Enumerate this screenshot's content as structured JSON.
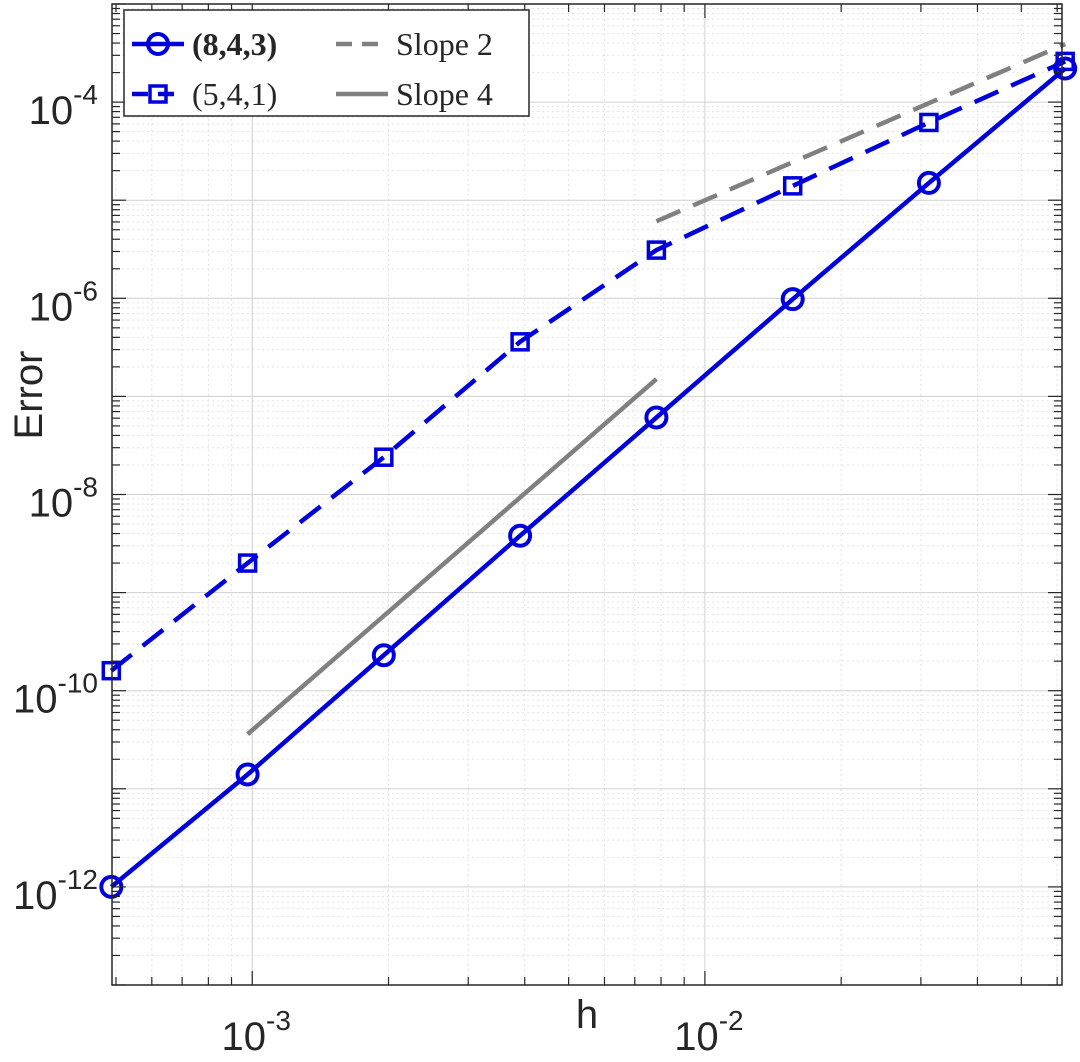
{
  "chart_data": {
    "type": "line",
    "title": "",
    "xlabel": "h",
    "ylabel": "Error",
    "xscale": "log",
    "yscale": "log",
    "xlim": [
      0.00049,
      0.0615
    ],
    "ylim": [
      1e-13,
      0.001
    ],
    "xticks": [
      {
        "base": "10",
        "exp": "-3",
        "value": 0.001
      },
      {
        "base": "10",
        "exp": "-2",
        "value": 0.01
      }
    ],
    "yticks": [
      {
        "base": "10",
        "exp": "-4",
        "value": 0.0001
      },
      {
        "base": "10",
        "exp": "-6",
        "value": 1e-06
      },
      {
        "base": "10",
        "exp": "-8",
        "value": 1e-08
      },
      {
        "base": "10",
        "exp": "-10",
        "value": 1e-10
      },
      {
        "base": "10",
        "exp": "-12",
        "value": 1e-12
      }
    ],
    "grid": true,
    "minor_grid": true,
    "legend_position": "top-left",
    "series": [
      {
        "name": "(8,4,3)",
        "name_bold": true,
        "color": "#0000dd",
        "line": "solid",
        "marker": "circle",
        "x": [
          0.0004883,
          0.0009766,
          0.001953,
          0.003906,
          0.007813,
          0.01563,
          0.03125,
          0.0625
        ],
        "y": [
          1e-12,
          1.4e-11,
          2.3e-10,
          3.8e-09,
          6.1e-08,
          9.8e-07,
          1.5e-05,
          0.00022
        ]
      },
      {
        "name": "(5,4,1)",
        "name_bold": false,
        "color": "#0000dd",
        "line": "dashed",
        "marker": "square",
        "x": [
          0.0004883,
          0.0009766,
          0.001953,
          0.003906,
          0.007813,
          0.01563,
          0.03125,
          0.0625
        ],
        "y": [
          1.6e-10,
          2e-09,
          2.4e-08,
          3.6e-07,
          3.1e-06,
          1.4e-05,
          6.2e-05,
          0.00026
        ]
      },
      {
        "name": "Slope 2",
        "color": "#808080",
        "line": "dashed",
        "marker": "none",
        "x": [
          0.007813,
          0.0625
        ],
        "y": [
          6.1e-06,
          0.00039
        ]
      },
      {
        "name": "Slope 4",
        "color": "#808080",
        "line": "solid",
        "marker": "none",
        "x": [
          0.0009766,
          0.007813
        ],
        "y": [
          3.6e-11,
          1.5e-07
        ]
      }
    ]
  }
}
